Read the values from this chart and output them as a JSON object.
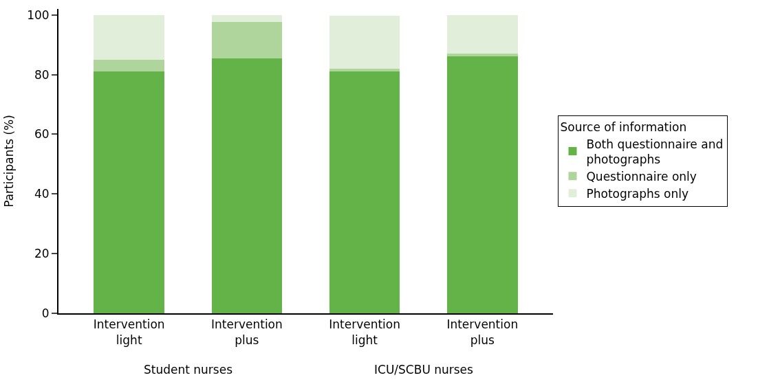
{
  "chart_data": {
    "type": "bar",
    "stacked": true,
    "categories": [
      "Intervention\nlight",
      "Intervention\nplus",
      "Intervention\nlight",
      "Intervention\nplus"
    ],
    "ylabel": "Participants (%)",
    "legend_title": "Source of information",
    "series": [
      {
        "name": "Both questionnaire and photographs",
        "color": "#64b348",
        "values": [
          81,
          85.5,
          81,
          86.2
        ]
      },
      {
        "name": "Questionnaire only",
        "color": "#afd59d",
        "values": [
          4,
          12.2,
          1,
          0.9
        ]
      },
      {
        "name": "Photographs only",
        "color": "#e1efda",
        "values": [
          15,
          2.3,
          17.8,
          12.9
        ]
      }
    ],
    "annotations": [
      "Student nurses",
      "ICU/SCBU nurses"
    ],
    "ylim": [
      0,
      102
    ],
    "yticks": [
      0,
      20,
      40,
      60,
      80,
      100
    ],
    "legend": "right"
  }
}
